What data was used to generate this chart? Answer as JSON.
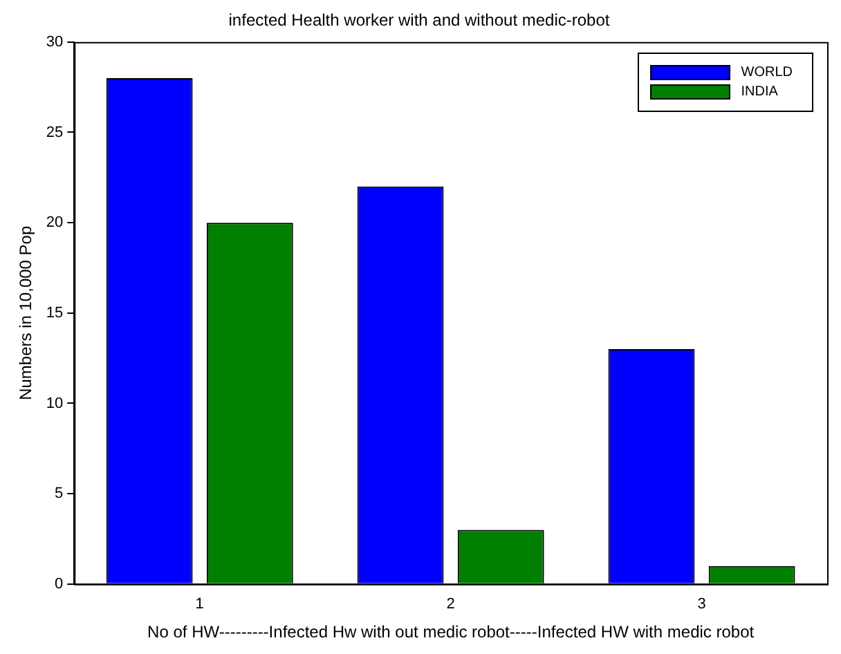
{
  "chart_data": {
    "type": "bar",
    "title": "infected Health worker with and without medic-robot",
    "xlabel": "No of HW---------Infected Hw with out medic robot-----Infected HW with medic robot",
    "ylabel": "Numbers in 10,000 Pop",
    "categories": [
      "1",
      "2",
      "3"
    ],
    "series": [
      {
        "name": "WORLD",
        "color": "#0000ff",
        "values": [
          28,
          22,
          13
        ]
      },
      {
        "name": "INDIA",
        "color": "#008000",
        "values": [
          20,
          3,
          1
        ]
      }
    ],
    "ylim": [
      0,
      30
    ],
    "yticks": [
      0,
      5,
      10,
      15,
      20,
      25,
      30
    ],
    "grid": false,
    "legend": "top right"
  }
}
